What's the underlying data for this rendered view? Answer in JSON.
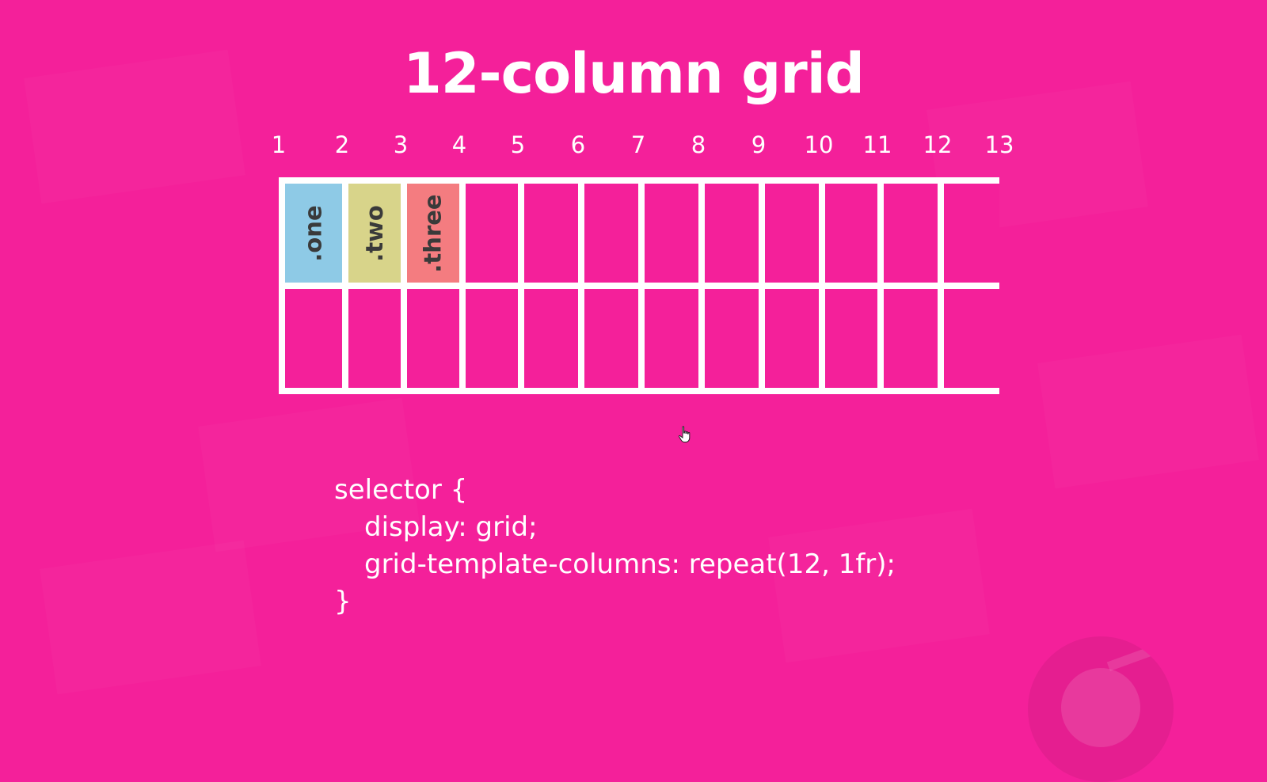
{
  "title": "12-column grid",
  "line_numbers": [
    "1",
    "2",
    "3",
    "4",
    "5",
    "6",
    "7",
    "8",
    "9",
    "10",
    "11",
    "12",
    "13"
  ],
  "grid": {
    "columns": 12,
    "rows": 2,
    "items": [
      {
        "label": ".one",
        "color": "#8ecae6",
        "column": 1,
        "row": 1
      },
      {
        "label": ".two",
        "color": "#d8d48a",
        "column": 2,
        "row": 1
      },
      {
        "label": ".three",
        "color": "#f47c80",
        "column": 3,
        "row": 1
      }
    ]
  },
  "code": {
    "line1": "selector {",
    "line2": "display: grid;",
    "line3": "grid-template-columns: repeat(12, 1fr);",
    "line4": "}"
  },
  "colors": {
    "background": "#f4209a",
    "grid_lines": "#ffffff"
  },
  "icons": [
    "hand-cursor-icon",
    "ninja-logo-icon"
  ]
}
